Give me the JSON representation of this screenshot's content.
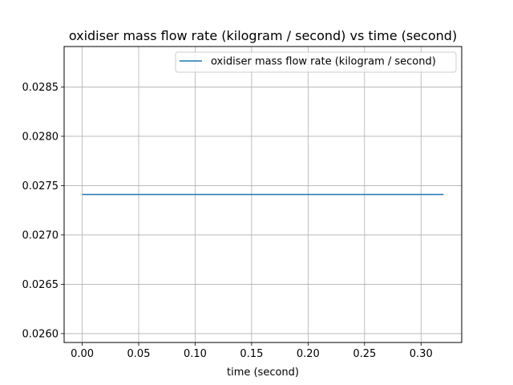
{
  "chart_data": {
    "type": "line",
    "title": "oxidiser mass flow rate (kilogram / second) vs time (second)",
    "xlabel": "time (second)",
    "ylabel": "",
    "xlim": [
      -0.016,
      0.336
    ],
    "ylim": [
      0.02591,
      0.02891
    ],
    "xticks": [
      0.0,
      0.05,
      0.1,
      0.15,
      0.2,
      0.25,
      0.3
    ],
    "xtick_labels": [
      "0.00",
      "0.05",
      "0.10",
      "0.15",
      "0.20",
      "0.25",
      "0.30"
    ],
    "yticks": [
      0.026,
      0.0265,
      0.027,
      0.0275,
      0.028,
      0.0285
    ],
    "ytick_labels": [
      "0.0260",
      "0.0265",
      "0.0270",
      "0.0275",
      "0.0280",
      "0.0285"
    ],
    "grid": true,
    "legend_position": "top-right",
    "series": [
      {
        "name": "oxidiser mass flow rate (kilogram / second)",
        "color": "#1f77b4",
        "x": [
          0.0,
          0.32
        ],
        "y": [
          0.02741,
          0.02741
        ]
      }
    ]
  }
}
